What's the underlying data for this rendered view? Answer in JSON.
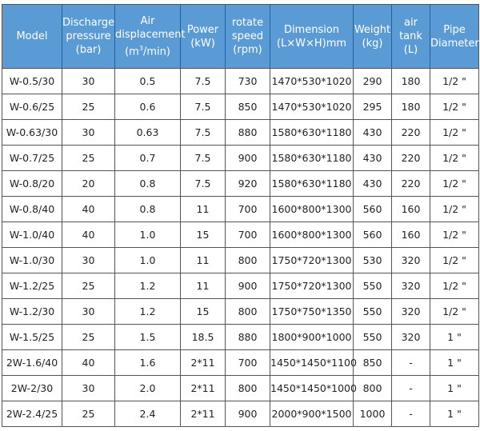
{
  "header_color": "#5b9bd5",
  "columns": [
    {
      "lines": [
        "Model"
      ]
    },
    {
      "lines": [
        "Discharge",
        "pressure",
        "(bar)"
      ]
    },
    {
      "lines": [
        "Air",
        "displacement"
      ],
      "unit_pre": "(m",
      "unit_sup": "3",
      "unit_post": "/min)"
    },
    {
      "lines": [
        "Power",
        "(kW)"
      ]
    },
    {
      "lines": [
        "rotate",
        "speed",
        "(rpm)"
      ]
    },
    {
      "lines": [
        "Dimension",
        "(L×W×H)mm"
      ]
    },
    {
      "lines": [
        "Weight",
        "(kg)"
      ]
    },
    {
      "lines": [
        "air tank",
        "(L)"
      ]
    },
    {
      "lines": [
        "Pipe",
        "Diameter"
      ]
    }
  ],
  "rows": [
    [
      "W-0.5/30",
      "30",
      "0.5",
      "7.5",
      "730",
      "1470*530*1020",
      "290",
      "180",
      "1/2 \""
    ],
    [
      "W-0.6/25",
      "25",
      "0.6",
      "7.5",
      "850",
      "1470*530*1020",
      "295",
      "180",
      "1/2 \""
    ],
    [
      "W-0.63/30",
      "30",
      "0.63",
      "7.5",
      "880",
      "1580*630*1180",
      "430",
      "220",
      "1/2 \""
    ],
    [
      "W-0.7/25",
      "25",
      "0.7",
      "7.5",
      "900",
      "1580*630*1180",
      "430",
      "220",
      "1/2 \""
    ],
    [
      "W-0.8/20",
      "20",
      "0.8",
      "7.5",
      "920",
      "1580*630*1180",
      "430",
      "220",
      "1/2 \""
    ],
    [
      "W-0.8/40",
      "40",
      "0.8",
      "11",
      "700",
      "1600*800*1300",
      "560",
      "160",
      "1/2 \""
    ],
    [
      "W-1.0/40",
      "40",
      "1.0",
      "15",
      "700",
      "1600*800*1300",
      "560",
      "160",
      "1/2 \""
    ],
    [
      "W-1.0/30",
      "30",
      "1.0",
      "11",
      "800",
      "1750*720*1300",
      "530",
      "320",
      "1/2 \""
    ],
    [
      "W-1.2/25",
      "25",
      "1.2",
      "11",
      "900",
      "1750*720*1300",
      "550",
      "320",
      "1/2 \""
    ],
    [
      "W-1.2/30",
      "30",
      "1.2",
      "15",
      "800",
      "1750*750*1350",
      "550",
      "320",
      "1/2 \""
    ],
    [
      "W-1.5/25",
      "25",
      "1.5",
      "18.5",
      "880",
      "1800*900*1000",
      "550",
      "320",
      "1 \""
    ],
    [
      "2W-1.6/40",
      "40",
      "1.6",
      "2*11",
      "700",
      "1450*1450*1100",
      "850",
      "-",
      "1 \""
    ],
    [
      "2W-2/30",
      "30",
      "2.0",
      "2*11",
      "800",
      "1450*1450*1000",
      "800",
      "-",
      "1 \""
    ],
    [
      "2W-2.4/25",
      "25",
      "2.4",
      "2*11",
      "900",
      "2000*900*1500",
      "1000",
      "-",
      "1 \""
    ]
  ]
}
